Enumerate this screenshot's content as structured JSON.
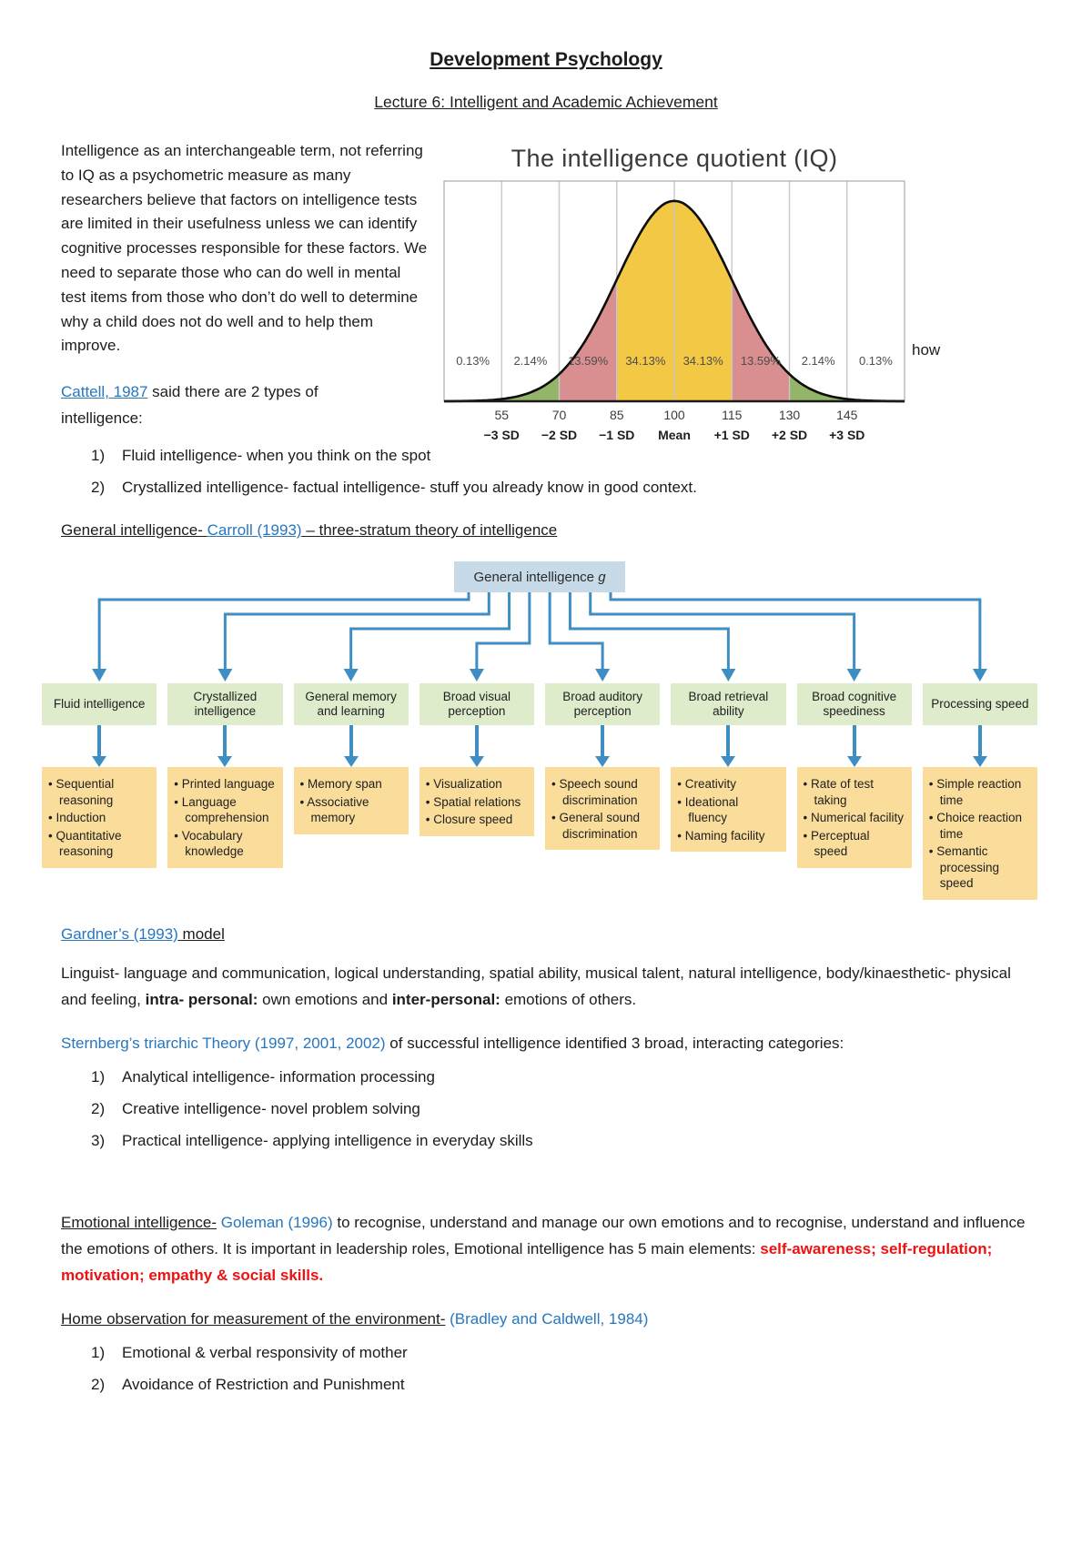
{
  "page": {
    "title": "Development Psychology",
    "subtitle": "Lecture 6: Intelligent and Academic Achievement"
  },
  "intro": {
    "paragraph": "Intelligence as an interchangeable term, not referring to IQ as a psychometric measure as many researchers believe that factors on intelligence tests are limited in their usefulness unless we can identify cognitive processes responsible for these factors. We need to separate those who can do well in mental test items from those who don’t do well to determine why a child does not do well and to help them improve.",
    "wrap_overflow_word": "how"
  },
  "cattell": {
    "heading_rich": [
      {
        "t": "Cattell, 1987",
        "s": "link"
      },
      {
        "t": " said there are 2 types of intelligence:",
        "s": "plain"
      }
    ],
    "items": [
      "Fluid intelligence- when you think on the spot",
      "Crystallized intelligence- factual intelligence- stuff you already know in good context."
    ]
  },
  "chart_data": {
    "type": "area",
    "title": "The intelligence quotient (IQ)",
    "mean": 100,
    "sd": 15,
    "sd_range": [
      -4,
      4
    ],
    "grid": true,
    "curve_color": "#0d0d0d",
    "x_tick_values": [
      55,
      70,
      85,
      100,
      115,
      130,
      145
    ],
    "sd_labels": [
      "−3 SD",
      "−2 SD",
      "−1 SD",
      "Mean",
      "+1 SD",
      "+2 SD",
      "+3 SD"
    ],
    "bands": [
      {
        "from": -4,
        "to": -3,
        "percent": "0.13%",
        "value": 0.13,
        "color": "#8a97cd"
      },
      {
        "from": -3,
        "to": -2,
        "percent": "2.14%",
        "value": 2.14,
        "color": "#93b469"
      },
      {
        "from": -2,
        "to": -1,
        "percent": "13.59%",
        "value": 13.59,
        "color": "#d98f8f"
      },
      {
        "from": -1,
        "to": 0,
        "percent": "34.13%",
        "value": 34.13,
        "color": "#f2c844"
      },
      {
        "from": 0,
        "to": 1,
        "percent": "34.13%",
        "value": 34.13,
        "color": "#f2c844"
      },
      {
        "from": 1,
        "to": 2,
        "percent": "13.59%",
        "value": 13.59,
        "color": "#d98f8f"
      },
      {
        "from": 2,
        "to": 3,
        "percent": "2.14%",
        "value": 2.14,
        "color": "#93b469"
      },
      {
        "from": 3,
        "to": 4,
        "percent": "0.13%",
        "value": 0.13,
        "color": "#8a97cd"
      }
    ]
  },
  "carroll": {
    "heading_rich": [
      {
        "t": "General intelligence- ",
        "s": "underline"
      },
      {
        "t": "Carroll (1993)",
        "s": "link"
      },
      {
        "t": " – three-stratum theory of intelligence",
        "s": "underline"
      }
    ],
    "root_pre": "General intelligence ",
    "root_italic": "g",
    "columns": [
      {
        "stratum2": "Fluid intelligence",
        "stratum1": [
          "Sequential reasoning",
          "Induction",
          "Quantitative reasoning"
        ]
      },
      {
        "stratum2": "Crystallized intelligence",
        "stratum1": [
          "Printed language",
          "Language comprehension",
          "Vocabulary knowledge"
        ]
      },
      {
        "stratum2": "General memory and learning",
        "stratum1": [
          "Memory span",
          "Associative memory"
        ]
      },
      {
        "stratum2": "Broad visual perception",
        "stratum1": [
          "Visualization",
          "Spatial relations",
          "Closure speed"
        ]
      },
      {
        "stratum2": "Broad auditory perception",
        "stratum1": [
          "Speech sound discrimination",
          "General sound discrimination"
        ]
      },
      {
        "stratum2": "Broad retrieval ability",
        "stratum1": [
          "Creativity",
          "Ideational fluency",
          "Naming facility"
        ]
      },
      {
        "stratum2": "Broad cognitive speediness",
        "stratum1": [
          "Rate of test taking",
          "Numerical facility",
          "Perceptual speed"
        ]
      },
      {
        "stratum2": "Processing speed",
        "stratum1": [
          "Simple reaction time",
          "Choice reaction time",
          "Semantic processing speed"
        ]
      }
    ]
  },
  "diagram": {
    "arrow_color": "#3e8ec4",
    "root_bg": "#c6dbe7",
    "stratum2_bg": "#dfeccc",
    "stratum1_bg": "#fadd9b"
  },
  "gardner": {
    "heading_rich": [
      {
        "t": "Gardner’s (1993)",
        "s": "link"
      },
      {
        "t": " model",
        "s": "underline"
      }
    ],
    "paragraph_rich": [
      {
        "t": "Linguist- language and communication, logical understanding, spatial ability, musical talent, natural intelligence, body/kinaesthetic- physical and feeling, ",
        "s": "plain"
      },
      {
        "t": "intra- personal:",
        "s": "bold"
      },
      {
        "t": " own emotions and ",
        "s": "plain"
      },
      {
        "t": "inter-personal:",
        "s": "bold"
      },
      {
        "t": " emotions of others.",
        "s": "plain"
      }
    ]
  },
  "sternberg": {
    "heading_rich": [
      {
        "t": "Sternberg’s triarchic Theory (1997, 2001, 2002)",
        "s": "linkplain"
      },
      {
        "t": " of successful intelligence identified 3 broad, interacting categories:",
        "s": "plain"
      }
    ],
    "items": [
      "Analytical intelligence- information processing",
      "Creative intelligence- novel problem solving",
      "Practical intelligence- applying intelligence in everyday skills"
    ]
  },
  "emotional": {
    "paragraph_rich": [
      {
        "t": "Emotional intelligence-",
        "s": "underline"
      },
      {
        "t": " ",
        "s": "plain"
      },
      {
        "t": "Goleman (1996)",
        "s": "linkplain"
      },
      {
        "t": " to recognise, understand and manage our own emotions and to recognise, understand and influence the emotions of others. It is important in leadership roles, Emotional intelligence has 5 main elements: ",
        "s": "plain"
      },
      {
        "t": "self-awareness; self-regulation; motivation; empathy & social skills.",
        "s": "redbold"
      }
    ]
  },
  "home": {
    "heading_rich": [
      {
        "t": "Home observation for measurement of the environment-",
        "s": "underline"
      },
      {
        "t": " ",
        "s": "plain"
      },
      {
        "t": "(Bradley and Caldwell, 1984)",
        "s": "linkplain"
      }
    ],
    "items": [
      "Emotional & verbal responsivity of mother",
      "Avoidance of Restriction and Punishment"
    ]
  }
}
